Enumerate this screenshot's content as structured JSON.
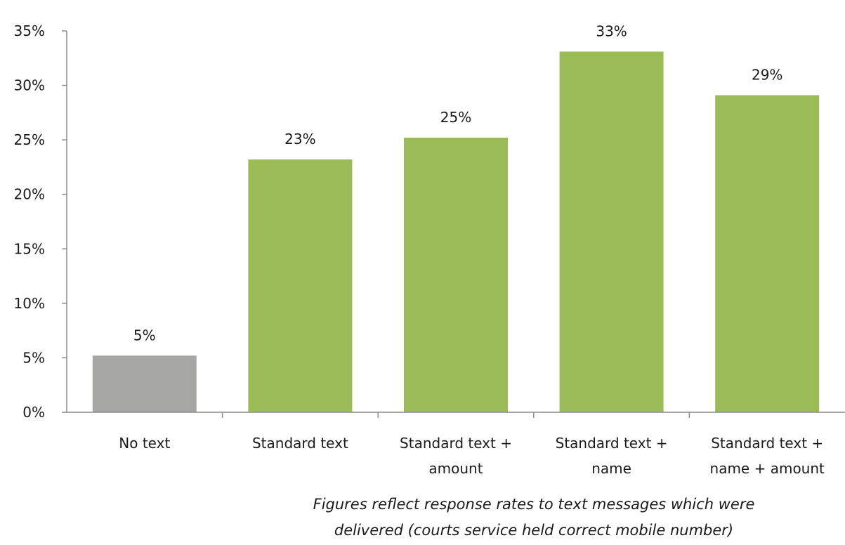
{
  "chart_data": {
    "type": "bar",
    "categories": [
      [
        "No text"
      ],
      [
        "Standard text"
      ],
      [
        "Standard text +",
        "amount"
      ],
      [
        "Standard text +",
        "name"
      ],
      [
        "Standard text +",
        "name + amount"
      ]
    ],
    "values": [
      5.2,
      23.2,
      25.2,
      33.1,
      29.1
    ],
    "data_labels": [
      "5%",
      "23%",
      "25%",
      "33%",
      "29%"
    ],
    "bar_colors": [
      "#a6a6a4",
      "#9bbb59",
      "#9bbb59",
      "#9bbb59",
      "#9bbb59"
    ],
    "ylim": [
      0,
      35
    ],
    "yticks": [
      0,
      5,
      10,
      15,
      20,
      25,
      30,
      35
    ],
    "ytick_labels": [
      "0%",
      "5%",
      "10%",
      "15%",
      "20%",
      "25%",
      "30%",
      "35%"
    ],
    "grid": false,
    "legend": "none",
    "title": "",
    "xlabel": "",
    "ylabel": ""
  },
  "footnote": {
    "line1": "Figures reflect response rates to text messages which were",
    "line2": "delivered (courts service held correct mobile number)"
  }
}
